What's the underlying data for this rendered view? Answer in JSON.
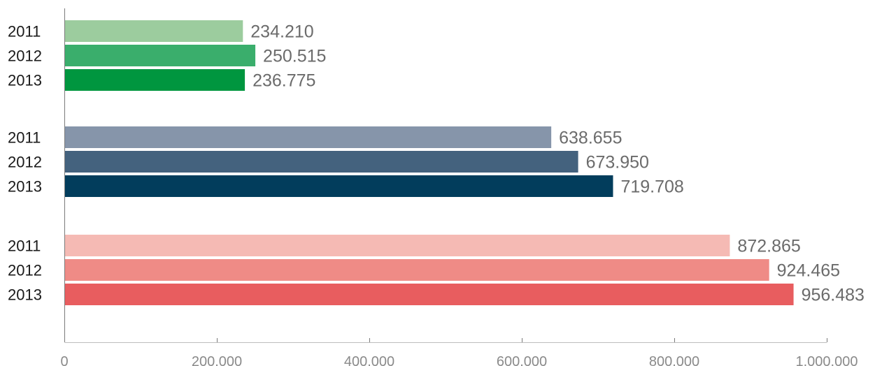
{
  "chart_data": {
    "type": "bar",
    "orientation": "horizontal",
    "title": "",
    "xlabel": "",
    "ylabel": "",
    "xlim": [
      0,
      1000000
    ],
    "x_ticks": [
      0,
      200000,
      400000,
      600000,
      800000,
      1000000
    ],
    "x_tick_labels": [
      "0",
      "200.000",
      "400.000",
      "600.000",
      "800.000",
      "1.000.000"
    ],
    "grid": false,
    "legend": "none",
    "groups": [
      {
        "bars": [
          {
            "year": "2011",
            "value": 234210,
            "label": "234.210",
            "color": "#9ccc9e"
          },
          {
            "year": "2012",
            "value": 250515,
            "label": "250.515",
            "color": "#3aae6c"
          },
          {
            "year": "2013",
            "value": 236775,
            "label": "236.775",
            "color": "#00963f"
          }
        ]
      },
      {
        "bars": [
          {
            "year": "2011",
            "value": 638655,
            "label": "638.655",
            "color": "#8695aa"
          },
          {
            "year": "2012",
            "value": 673950,
            "label": "673.950",
            "color": "#44627e"
          },
          {
            "year": "2013",
            "value": 719708,
            "label": "719.708",
            "color": "#023d5c"
          }
        ]
      },
      {
        "bars": [
          {
            "year": "2011",
            "value": 872865,
            "label": "872.865",
            "color": "#f5bab4"
          },
          {
            "year": "2012",
            "value": 924465,
            "label": "924.465",
            "color": "#ef8b86"
          },
          {
            "year": "2013",
            "value": 956483,
            "label": "956.483",
            "color": "#e85d5f"
          }
        ]
      }
    ]
  }
}
